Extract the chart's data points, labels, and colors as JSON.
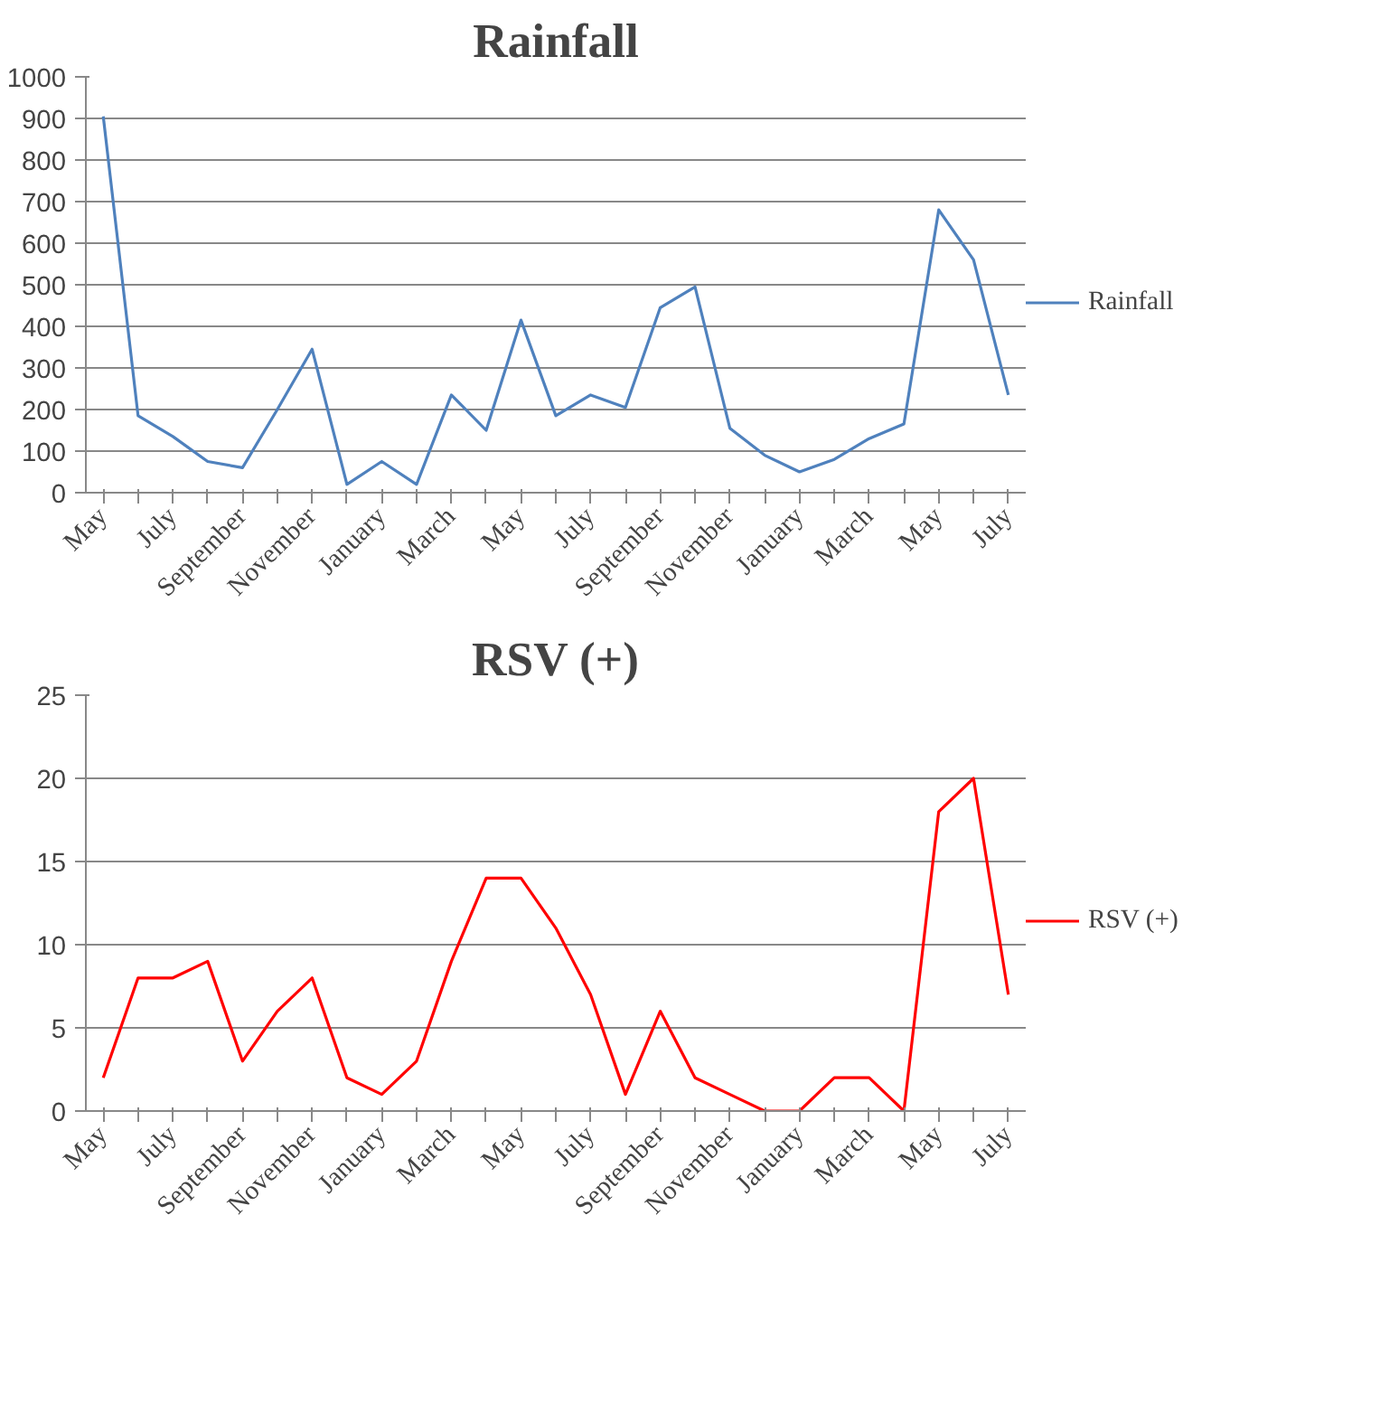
{
  "chart_data": [
    {
      "type": "line",
      "title": "Rainfall",
      "categories": [
        "May",
        null,
        "July",
        null,
        "September",
        null,
        "November",
        null,
        "January",
        null,
        "March",
        null,
        "May",
        null,
        "July",
        null,
        "September",
        null,
        "November",
        null,
        "January",
        null,
        "March",
        null,
        "May",
        null,
        "July"
      ],
      "series": [
        {
          "name": "Rainfall",
          "color": "#4f81bd",
          "values": [
            905,
            185,
            135,
            75,
            60,
            200,
            345,
            20,
            75,
            20,
            235,
            150,
            415,
            185,
            235,
            205,
            445,
            495,
            155,
            90,
            50,
            80,
            130,
            165,
            680,
            560,
            235
          ]
        }
      ],
      "ylim": [
        0,
        1000
      ],
      "yticks": [
        0,
        100,
        200,
        300,
        400,
        500,
        600,
        700,
        800,
        900,
        1000
      ],
      "grid": "y",
      "legend": "right",
      "marker": "none",
      "line_style": "solid"
    },
    {
      "type": "line",
      "title": "RSV (+)",
      "categories": [
        "May",
        null,
        "July",
        null,
        "September",
        null,
        "November",
        null,
        "January",
        null,
        "March",
        null,
        "May",
        null,
        "July",
        null,
        "September",
        null,
        "November",
        null,
        "January",
        null,
        "March",
        null,
        "May",
        null,
        "July"
      ],
      "series": [
        {
          "name": "RSV (+)",
          "color": "#ff0000",
          "values": [
            2,
            8,
            8,
            9,
            3,
            6,
            8,
            2,
            1,
            3,
            9,
            14,
            14,
            11,
            7,
            1,
            6,
            2,
            1,
            0,
            0,
            2,
            2,
            0,
            18,
            20,
            7
          ]
        }
      ],
      "ylim": [
        0,
        25
      ],
      "yticks": [
        0,
        5,
        10,
        15,
        20,
        25
      ],
      "grid": "y",
      "legend": "right",
      "marker": "none",
      "line_style": "solid"
    }
  ]
}
